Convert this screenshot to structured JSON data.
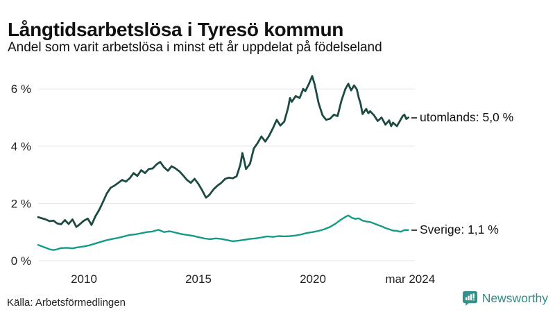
{
  "header": {
    "title": "Långtidsarbetslösa i Tyresö kommun",
    "subtitle": "Andel som varit arbetslösa i minst ett år uppdelat på födelseland"
  },
  "footer": {
    "source": "Källa: Arbetsförmedlingen",
    "brand_name": "Newsworthy",
    "brand_color": "#2f8b85",
    "brand_icon": "newsworthy-speech-bubble-bar-chart-icon"
  },
  "chart_data": {
    "type": "line",
    "title": "Långtidsarbetslösa i Tyresö kommun",
    "subtitle": "Andel som varit arbetslösa i minst ett år uppdelat på födelseland",
    "grid": true,
    "grid_color": "#e4e4e8",
    "legend_position": "right-of-line-end",
    "x_axis": {
      "range": [
        2008.0,
        2024.45
      ],
      "ticks": [
        {
          "value": 2010,
          "label": "2010"
        },
        {
          "value": 2015,
          "label": "2015"
        },
        {
          "value": 2020,
          "label": "2020"
        },
        {
          "value": 2024.25,
          "label": "mar 2024"
        }
      ]
    },
    "y_axis": {
      "unit": "%",
      "range": [
        0,
        6.6
      ],
      "ticks": [
        {
          "value": 0,
          "label": "0 %"
        },
        {
          "value": 2,
          "label": "2 %"
        },
        {
          "value": 4,
          "label": "4 %"
        },
        {
          "value": 6,
          "label": "6 %"
        }
      ]
    },
    "series": [
      {
        "name": "utomlands",
        "label": "utomlands: 5,0 %",
        "latest_value": "5,0 %",
        "color": "#1c4a43",
        "points": [
          [
            2008.0,
            1.52
          ],
          [
            2008.17,
            1.48
          ],
          [
            2008.33,
            1.44
          ],
          [
            2008.5,
            1.38
          ],
          [
            2008.67,
            1.4
          ],
          [
            2008.83,
            1.3
          ],
          [
            2009.0,
            1.27
          ],
          [
            2009.17,
            1.42
          ],
          [
            2009.33,
            1.28
          ],
          [
            2009.5,
            1.44
          ],
          [
            2009.67,
            1.18
          ],
          [
            2009.83,
            1.28
          ],
          [
            2010.0,
            1.4
          ],
          [
            2010.17,
            1.47
          ],
          [
            2010.33,
            1.25
          ],
          [
            2010.5,
            1.55
          ],
          [
            2010.67,
            1.78
          ],
          [
            2010.83,
            2.05
          ],
          [
            2011.0,
            2.35
          ],
          [
            2011.17,
            2.55
          ],
          [
            2011.33,
            2.62
          ],
          [
            2011.5,
            2.72
          ],
          [
            2011.67,
            2.82
          ],
          [
            2011.83,
            2.76
          ],
          [
            2012.0,
            2.88
          ],
          [
            2012.17,
            3.06
          ],
          [
            2012.33,
            2.96
          ],
          [
            2012.5,
            3.16
          ],
          [
            2012.67,
            3.06
          ],
          [
            2012.83,
            3.2
          ],
          [
            2013.0,
            3.22
          ],
          [
            2013.17,
            3.36
          ],
          [
            2013.33,
            3.45
          ],
          [
            2013.5,
            3.26
          ],
          [
            2013.67,
            3.14
          ],
          [
            2013.83,
            3.3
          ],
          [
            2014.0,
            3.22
          ],
          [
            2014.17,
            3.12
          ],
          [
            2014.33,
            2.98
          ],
          [
            2014.5,
            2.82
          ],
          [
            2014.67,
            2.72
          ],
          [
            2014.83,
            2.86
          ],
          [
            2015.0,
            2.68
          ],
          [
            2015.17,
            2.45
          ],
          [
            2015.33,
            2.2
          ],
          [
            2015.42,
            2.26
          ],
          [
            2015.5,
            2.32
          ],
          [
            2015.67,
            2.5
          ],
          [
            2015.83,
            2.62
          ],
          [
            2016.0,
            2.72
          ],
          [
            2016.17,
            2.86
          ],
          [
            2016.33,
            2.9
          ],
          [
            2016.5,
            2.88
          ],
          [
            2016.67,
            2.95
          ],
          [
            2016.83,
            3.35
          ],
          [
            2016.92,
            3.76
          ],
          [
            2017.0,
            3.5
          ],
          [
            2017.08,
            3.2
          ],
          [
            2017.25,
            3.38
          ],
          [
            2017.42,
            3.92
          ],
          [
            2017.58,
            4.1
          ],
          [
            2017.75,
            4.34
          ],
          [
            2017.92,
            4.16
          ],
          [
            2018.08,
            4.35
          ],
          [
            2018.25,
            4.62
          ],
          [
            2018.42,
            4.92
          ],
          [
            2018.58,
            4.72
          ],
          [
            2018.75,
            4.86
          ],
          [
            2018.92,
            5.35
          ],
          [
            2019.0,
            5.68
          ],
          [
            2019.08,
            5.55
          ],
          [
            2019.25,
            5.75
          ],
          [
            2019.42,
            5.68
          ],
          [
            2019.58,
            6.0
          ],
          [
            2019.67,
            5.92
          ],
          [
            2019.83,
            6.18
          ],
          [
            2019.97,
            6.45
          ],
          [
            2020.08,
            6.15
          ],
          [
            2020.25,
            5.5
          ],
          [
            2020.42,
            5.08
          ],
          [
            2020.58,
            4.92
          ],
          [
            2020.75,
            4.96
          ],
          [
            2020.92,
            5.1
          ],
          [
            2021.08,
            5.05
          ],
          [
            2021.25,
            5.6
          ],
          [
            2021.42,
            6.0
          ],
          [
            2021.55,
            6.18
          ],
          [
            2021.67,
            5.95
          ],
          [
            2021.8,
            6.12
          ],
          [
            2021.92,
            5.98
          ],
          [
            2022.0,
            5.7
          ],
          [
            2022.08,
            5.5
          ],
          [
            2022.17,
            5.12
          ],
          [
            2022.33,
            5.3
          ],
          [
            2022.42,
            5.15
          ],
          [
            2022.5,
            5.22
          ],
          [
            2022.67,
            5.08
          ],
          [
            2022.83,
            4.88
          ],
          [
            2023.0,
            5.0
          ],
          [
            2023.17,
            4.75
          ],
          [
            2023.33,
            4.9
          ],
          [
            2023.42,
            4.7
          ],
          [
            2023.5,
            4.82
          ],
          [
            2023.67,
            4.7
          ],
          [
            2023.83,
            4.92
          ],
          [
            2023.92,
            5.05
          ],
          [
            2024.0,
            5.1
          ],
          [
            2024.08,
            4.95
          ],
          [
            2024.17,
            5.0
          ]
        ]
      },
      {
        "name": "Sverige",
        "label": "Sverige: 1,1 %",
        "latest_value": "1,1 %",
        "color": "#169a88",
        "points": [
          [
            2008.0,
            0.55
          ],
          [
            2008.17,
            0.5
          ],
          [
            2008.33,
            0.45
          ],
          [
            2008.5,
            0.4
          ],
          [
            2008.67,
            0.37
          ],
          [
            2008.83,
            0.4
          ],
          [
            2009.0,
            0.44
          ],
          [
            2009.25,
            0.45
          ],
          [
            2009.5,
            0.43
          ],
          [
            2009.75,
            0.47
          ],
          [
            2010.0,
            0.5
          ],
          [
            2010.25,
            0.54
          ],
          [
            2010.5,
            0.6
          ],
          [
            2010.75,
            0.66
          ],
          [
            2011.0,
            0.72
          ],
          [
            2011.25,
            0.76
          ],
          [
            2011.5,
            0.8
          ],
          [
            2011.75,
            0.85
          ],
          [
            2012.0,
            0.9
          ],
          [
            2012.25,
            0.92
          ],
          [
            2012.5,
            0.96
          ],
          [
            2012.75,
            1.0
          ],
          [
            2013.0,
            1.02
          ],
          [
            2013.25,
            1.08
          ],
          [
            2013.5,
            1.0
          ],
          [
            2013.75,
            1.03
          ],
          [
            2014.0,
            0.98
          ],
          [
            2014.25,
            0.93
          ],
          [
            2014.5,
            0.9
          ],
          [
            2014.75,
            0.87
          ],
          [
            2015.0,
            0.82
          ],
          [
            2015.25,
            0.78
          ],
          [
            2015.5,
            0.75
          ],
          [
            2015.75,
            0.78
          ],
          [
            2016.0,
            0.76
          ],
          [
            2016.25,
            0.72
          ],
          [
            2016.5,
            0.68
          ],
          [
            2016.75,
            0.7
          ],
          [
            2017.0,
            0.73
          ],
          [
            2017.25,
            0.76
          ],
          [
            2017.5,
            0.78
          ],
          [
            2017.75,
            0.81
          ],
          [
            2018.0,
            0.85
          ],
          [
            2018.25,
            0.83
          ],
          [
            2018.5,
            0.86
          ],
          [
            2018.75,
            0.85
          ],
          [
            2019.0,
            0.86
          ],
          [
            2019.25,
            0.88
          ],
          [
            2019.5,
            0.92
          ],
          [
            2019.75,
            0.97
          ],
          [
            2020.0,
            1.0
          ],
          [
            2020.25,
            1.04
          ],
          [
            2020.5,
            1.1
          ],
          [
            2020.75,
            1.18
          ],
          [
            2021.0,
            1.3
          ],
          [
            2021.2,
            1.42
          ],
          [
            2021.4,
            1.52
          ],
          [
            2021.55,
            1.58
          ],
          [
            2021.7,
            1.5
          ],
          [
            2021.85,
            1.46
          ],
          [
            2022.0,
            1.48
          ],
          [
            2022.17,
            1.4
          ],
          [
            2022.33,
            1.37
          ],
          [
            2022.5,
            1.35
          ],
          [
            2022.67,
            1.3
          ],
          [
            2022.83,
            1.25
          ],
          [
            2023.0,
            1.2
          ],
          [
            2023.17,
            1.14
          ],
          [
            2023.33,
            1.1
          ],
          [
            2023.5,
            1.05
          ],
          [
            2023.67,
            1.04
          ],
          [
            2023.83,
            1.01
          ],
          [
            2024.0,
            1.07
          ],
          [
            2024.17,
            1.07
          ]
        ]
      }
    ]
  }
}
